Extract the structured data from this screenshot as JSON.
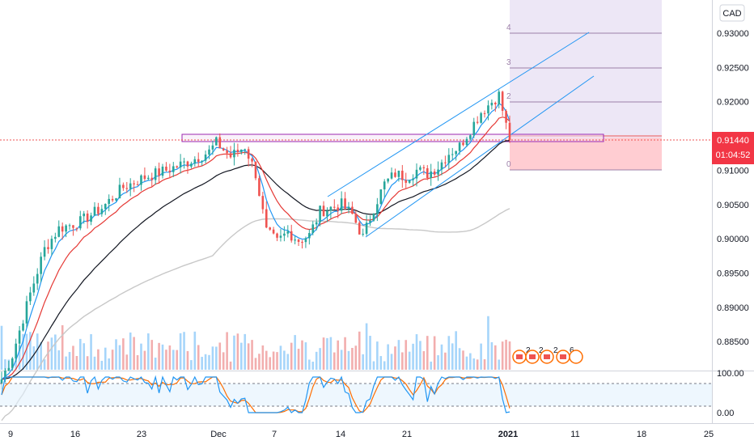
{
  "currency_label": "CAD",
  "price_badge": {
    "value": "0.91440",
    "countdown": "01:04:52",
    "color": "#f23645"
  },
  "colors": {
    "bull": "#26a69a",
    "bear": "#ef5350",
    "ema_fast": "#2196f3",
    "ema_mid": "#e53935",
    "ema_slow": "#131722",
    "sma_long": "#c8c8c8",
    "fib_fill": "#ede7f6",
    "channel": "#2196f3",
    "zone": "#9c27b0",
    "short_fill": "#ffcdd2",
    "stoch_k": "#2196f3",
    "stoch_d": "#ff6d00"
  },
  "chart_data": {
    "type": "candlestick",
    "price_axis": {
      "min": 0.8785,
      "max": 0.9345,
      "ticks": [
        "0.93000",
        "0.92500",
        "0.92000",
        "0.91000",
        "0.90500",
        "0.90000",
        "0.89500",
        "0.89000",
        "0.88500"
      ]
    },
    "x_axis": {
      "ticks": [
        "9",
        "16",
        "23",
        "Dec",
        "7",
        "14",
        "21",
        "2021",
        "11",
        "18",
        "25"
      ]
    },
    "fib_levels": [
      "4",
      "3",
      "2",
      "0"
    ],
    "events": [
      {
        "label": "2"
      },
      {
        "label": "2"
      },
      {
        "label": "2"
      },
      {
        "label": "6"
      }
    ],
    "oscillator": {
      "ticks": [
        "100.00",
        "0.00"
      ],
      "upper_band": 80,
      "lower_band": 20
    },
    "anchors": [
      [
        0,
        0.8795
      ],
      [
        3,
        0.883
      ],
      [
        8,
        0.892
      ],
      [
        12,
        0.8985
      ],
      [
        16,
        0.9015
      ],
      [
        22,
        0.9025
      ],
      [
        28,
        0.9045
      ],
      [
        34,
        0.9075
      ],
      [
        40,
        0.909
      ],
      [
        46,
        0.91
      ],
      [
        52,
        0.9112
      ],
      [
        58,
        0.9127
      ],
      [
        60,
        0.914
      ],
      [
        64,
        0.912
      ],
      [
        68,
        0.9135
      ],
      [
        71,
        0.9095
      ],
      [
        74,
        0.901
      ],
      [
        77,
        0.8995
      ],
      [
        80,
        0.901
      ],
      [
        83,
        0.8998
      ],
      [
        86,
        0.9005
      ],
      [
        89,
        0.904
      ],
      [
        92,
        0.9045
      ],
      [
        95,
        0.905
      ],
      [
        98,
        0.9035
      ],
      [
        101,
        0.9002
      ],
      [
        104,
        0.9045
      ],
      [
        107,
        0.908
      ],
      [
        110,
        0.9095
      ],
      [
        113,
        0.909
      ],
      [
        116,
        0.91
      ],
      [
        119,
        0.9095
      ],
      [
        122,
        0.9105
      ],
      [
        125,
        0.9125
      ],
      [
        128,
        0.9135
      ],
      [
        131,
        0.916
      ],
      [
        134,
        0.9185
      ],
      [
        137,
        0.92
      ],
      [
        139,
        0.921
      ],
      [
        141,
        0.9165
      ],
      [
        142,
        0.9144
      ]
    ]
  }
}
